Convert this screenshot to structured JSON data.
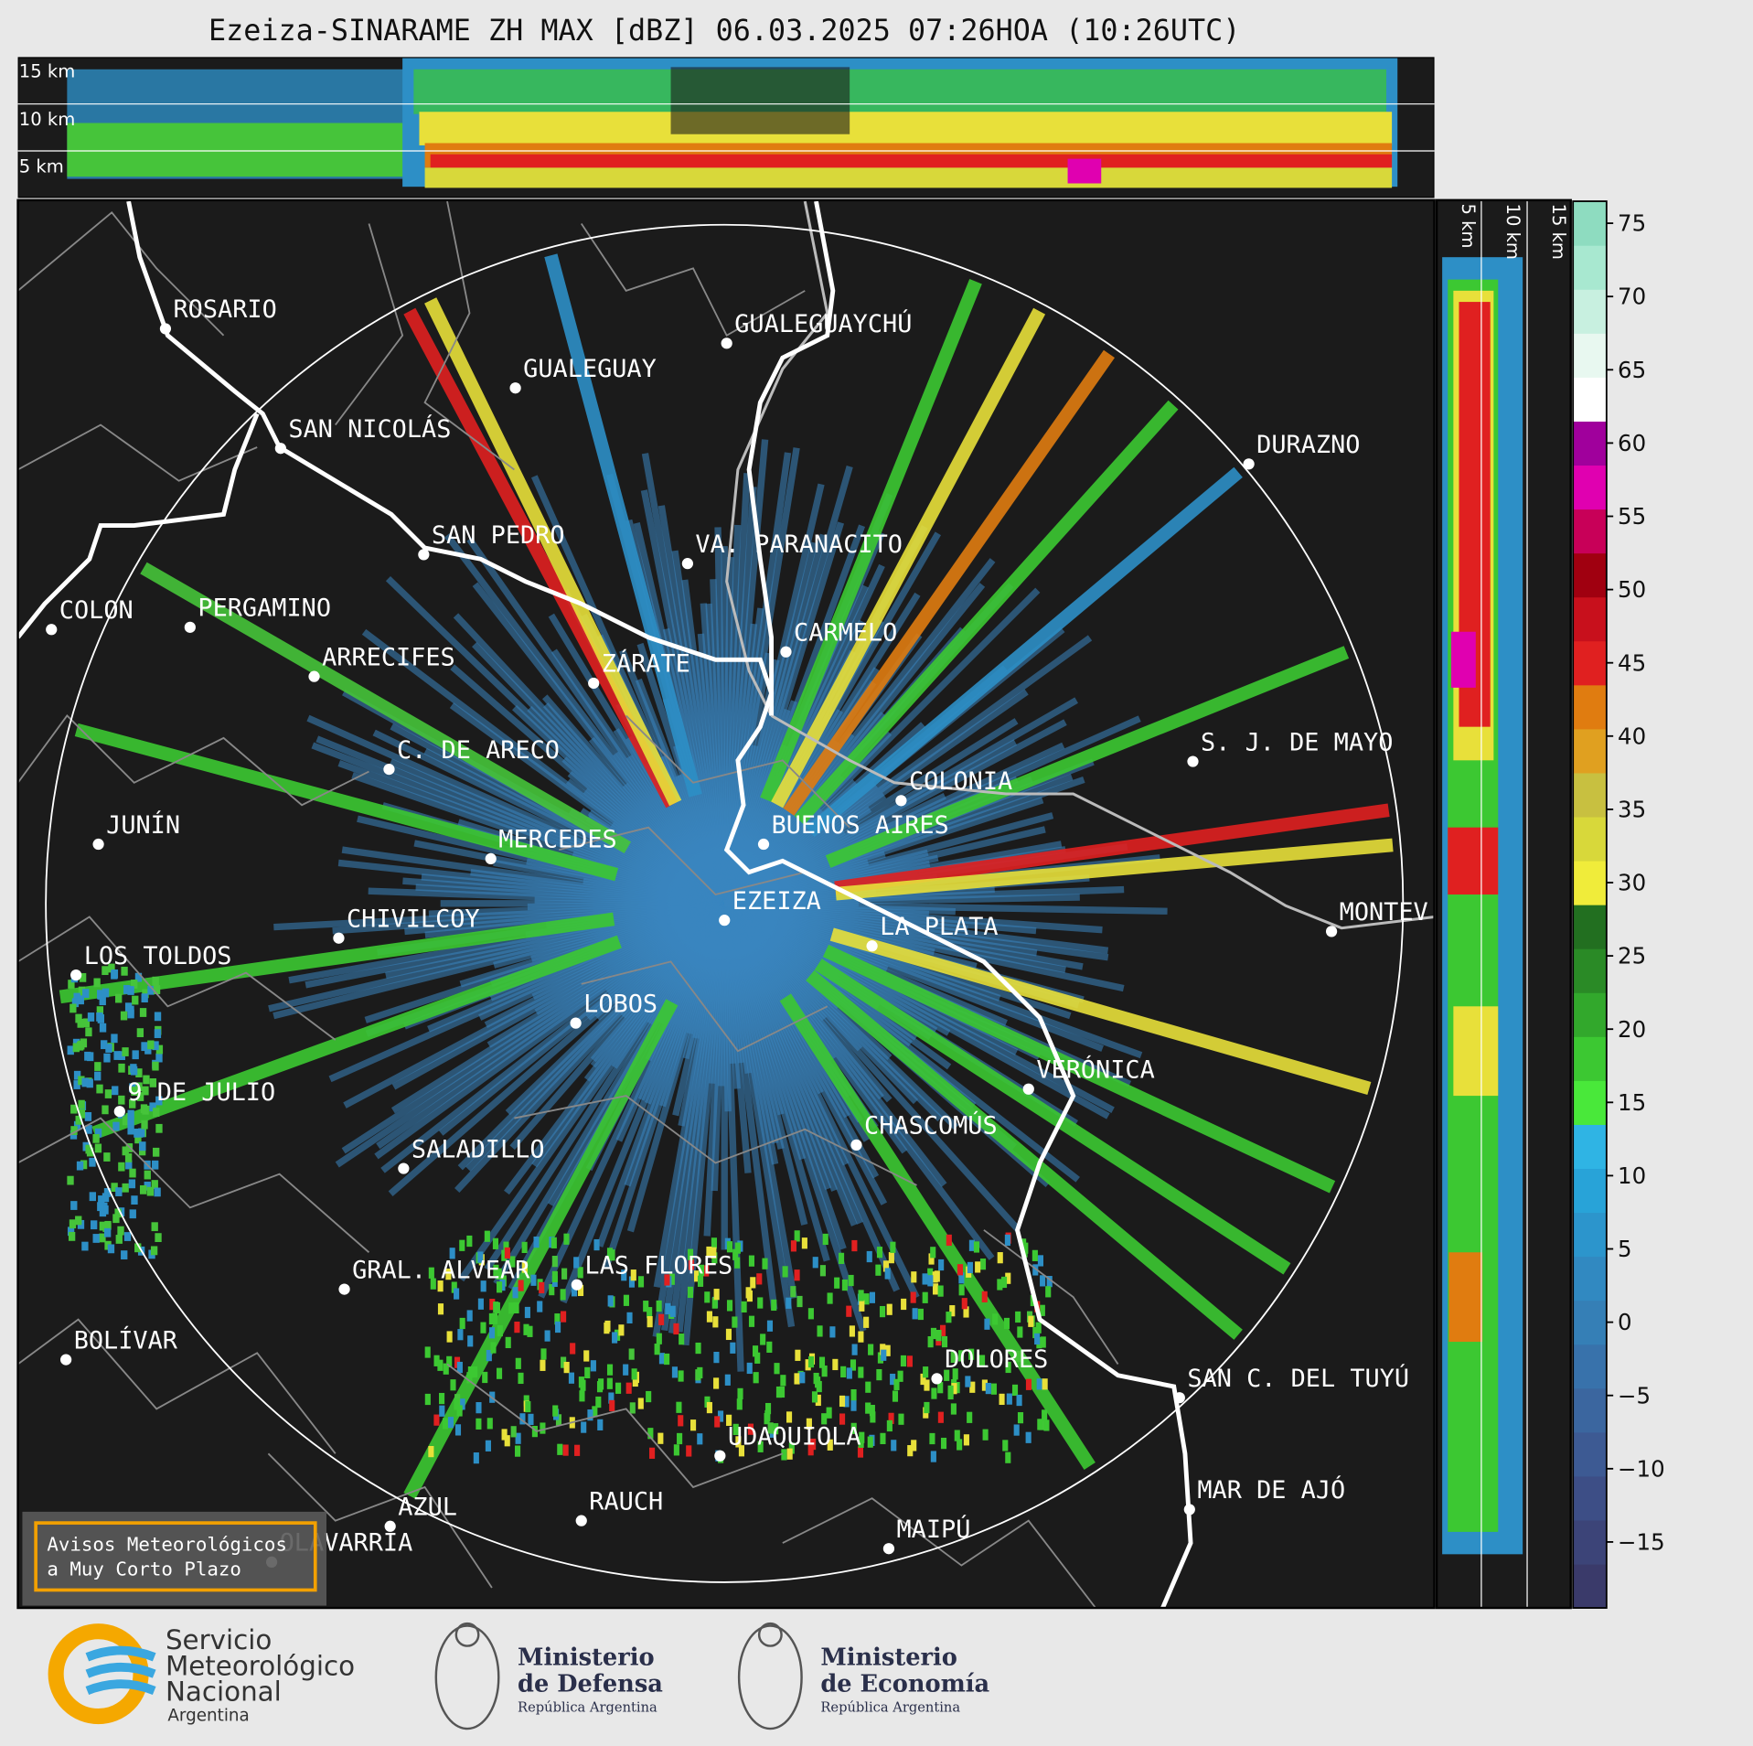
{
  "title": "Ezeiza-SINARAME ZH MAX [dBZ] 06.03.2025 07:26HOA (10:26UTC)",
  "top_panel": {
    "labels": [
      "15 km",
      "10 km",
      "5 km"
    ]
  },
  "side_panel": {
    "labels": [
      "5 km",
      "10 km",
      "15 km"
    ]
  },
  "cities": [
    "ROSARIO",
    "GUALEGUAYCHÚ",
    "GUALEGUAY",
    "SAN NICOLÁS",
    "DURAZNO",
    "SAN PEDRO",
    "VA. PARANACITO",
    "COLON",
    "PERGAMINO",
    "CARMELO",
    "ZÁRATE",
    "ARRECIFES",
    "S. J. DE MAYO",
    "C. DE ARECO",
    "COLONIA",
    "BUENOS AIRES",
    "JUNÍN",
    "MERCEDES",
    "EZEIZA",
    "MONTEV",
    "CHIVILCOY",
    "LA PLATA",
    "LOS TOLDOS",
    "LOBOS",
    "VERÓNICA",
    "9 DE JULIO",
    "CHASCOMÚS",
    "SALADILLO",
    "GRAL. ALVEAR",
    "LAS FLORES",
    "BOLÍVAR",
    "DOLORES",
    "SAN C. DEL TUYÚ",
    "UDAQUIOLA",
    "MAR DE AJÓ",
    "RAUCH",
    "AZUL",
    "OLAVARRÍA",
    "MAIPÚ"
  ],
  "colorbar": {
    "lim": [
      -19.5,
      76.5
    ],
    "ticks": [
      75,
      70,
      65,
      60,
      55,
      50,
      45,
      40,
      35,
      30,
      25,
      20,
      15,
      10,
      5,
      0,
      {
        "value": -5,
        "label": "−5"
      },
      {
        "value": -10,
        "label": "−10"
      },
      {
        "value": -15,
        "label": "−15"
      }
    ],
    "colors": [
      "#3a3a6a",
      "#3c4478",
      "#3d4e86",
      "#3d5a93",
      "#3b669f",
      "#3872ab",
      "#357fb6",
      "#3189c1",
      "#2c95cc",
      "#28a3d8",
      "#2fb4e4",
      "#49e83a",
      "#3cc832",
      "#32a82c",
      "#2a8a26",
      "#226f20",
      "#f0ec3a",
      "#d8d83a",
      "#c8c040",
      "#e0a020",
      "#e07c10",
      "#e02020",
      "#c8101c",
      "#a00010",
      "#c80058",
      "#e000b0",
      "#a0009c",
      "#ffffff",
      "#e8f8f0",
      "#c8f0e0",
      "#a8e8d0",
      "#8edcc0"
    ]
  },
  "notice": [
    "Avisos Meteorológicos",
    "a Muy Corto Plazo"
  ],
  "logos": {
    "smn": [
      "Servicio",
      "Meteorológico",
      "Nacional",
      "Argentina"
    ],
    "defensa": [
      "Ministerio",
      "de Defensa",
      "República Argentina"
    ],
    "economia": [
      "Ministerio",
      "de Economía",
      "República Argentina"
    ]
  }
}
